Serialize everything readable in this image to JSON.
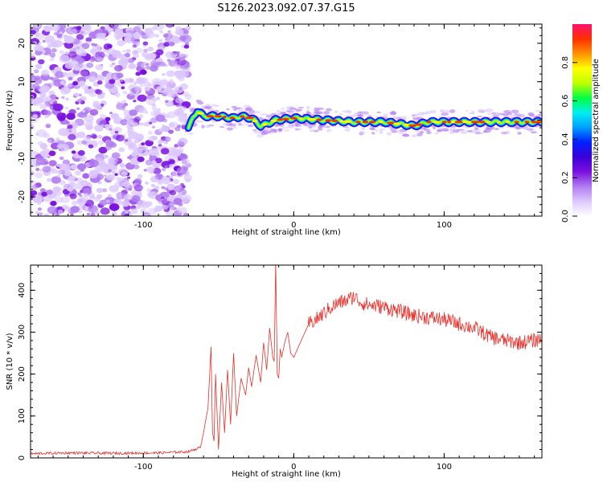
{
  "title": "S126.2023.092.07.37.G15",
  "chart_data": [
    {
      "type": "heatmap",
      "xlabel": "Height of straight line (km)",
      "ylabel": "Frequency (Hz)",
      "xlim": [
        -175,
        165
      ],
      "ylim": [
        -25,
        25
      ],
      "x_ticks": [
        -100,
        0,
        100
      ],
      "x_tick_labels": [
        "-100",
        "0",
        "100"
      ],
      "y_ticks": [
        -20,
        -10,
        0,
        10,
        20
      ],
      "y_tick_labels": [
        "-20",
        "-10",
        "0",
        "10",
        "20"
      ],
      "grid": false,
      "noise_region": {
        "x_range": [
          -175,
          -70
        ],
        "y_range": [
          -25,
          25
        ]
      },
      "ridge": [
        {
          "x": -70,
          "y": -2.0
        },
        {
          "x": -67,
          "y": 0.5
        },
        {
          "x": -64,
          "y": 2.5
        },
        {
          "x": -60,
          "y": 1.0
        },
        {
          "x": -50,
          "y": 1.0
        },
        {
          "x": -40,
          "y": 0.5
        },
        {
          "x": -35,
          "y": 1.0
        },
        {
          "x": -28,
          "y": 0.5
        },
        {
          "x": -22,
          "y": -1.5
        },
        {
          "x": -18,
          "y": -1.0
        },
        {
          "x": -12,
          "y": 0.0
        },
        {
          "x": 0,
          "y": 0.5
        },
        {
          "x": 20,
          "y": 0.0
        },
        {
          "x": 40,
          "y": -0.5
        },
        {
          "x": 60,
          "y": -0.5
        },
        {
          "x": 70,
          "y": -1.0
        },
        {
          "x": 80,
          "y": -1.5
        },
        {
          "x": 90,
          "y": -0.5
        },
        {
          "x": 120,
          "y": -0.5
        },
        {
          "x": 165,
          "y": -0.5
        }
      ],
      "colorbar": {
        "label": "Normalized spectral amplitude",
        "range": [
          0,
          1
        ],
        "ticks": [
          0,
          0.2,
          0.4,
          0.6,
          0.8
        ],
        "tick_labels": [
          "0.0",
          "0.2",
          "0.4",
          "0.6",
          "0.8"
        ],
        "colormap": [
          "#ffffff",
          "#dcc8ff",
          "#b07cf0",
          "#7a10e0",
          "#3c00d8",
          "#0020ff",
          "#00a0ff",
          "#00f0f0",
          "#00ff40",
          "#c0ff00",
          "#ffff00",
          "#ff9000",
          "#ff3000",
          "#ff1070"
        ]
      }
    },
    {
      "type": "line",
      "xlabel": "Height of straight line (km)",
      "ylabel": "SNR (10 * v/v)",
      "xlim": [
        -175,
        165
      ],
      "ylim": [
        0,
        460
      ],
      "x_ticks": [
        -100,
        0,
        100
      ],
      "x_tick_labels": [
        "-100",
        "0",
        "100"
      ],
      "y_ticks": [
        0,
        100,
        200,
        300,
        400
      ],
      "y_tick_labels": [
        "0",
        "100",
        "200",
        "300",
        "400"
      ],
      "grid": false,
      "series_color": "#e8302b",
      "series": [
        {
          "x": [
            -175,
            -150,
            -120,
            -90,
            -70,
            -62,
            -60,
            -57,
            -55,
            -54,
            -53,
            -52,
            -50,
            -48,
            -46,
            -44,
            -42,
            -40,
            -38,
            -35,
            -32,
            -30,
            -28,
            -25,
            -22,
            -20,
            -18,
            -16,
            -14,
            -13,
            -12,
            -11,
            -10,
            -9,
            -8,
            -6,
            -4,
            -2,
            0,
            5,
            10,
            15,
            20,
            25,
            30,
            35,
            40,
            45,
            50,
            60,
            70,
            80,
            90,
            100,
            110,
            120,
            130,
            140,
            150,
            160,
            165
          ],
          "y": [
            10,
            12,
            11,
            12,
            15,
            25,
            60,
            120,
            265,
            60,
            40,
            200,
            20,
            180,
            60,
            210,
            80,
            250,
            100,
            190,
            150,
            215,
            170,
            245,
            180,
            275,
            210,
            310,
            240,
            230,
            470,
            200,
            190,
            260,
            240,
            275,
            300,
            250,
            240,
            280,
            320,
            330,
            345,
            360,
            370,
            375,
            385,
            370,
            365,
            360,
            350,
            340,
            335,
            330,
            320,
            310,
            290,
            280,
            275,
            280,
            285
          ]
        }
      ]
    }
  ]
}
